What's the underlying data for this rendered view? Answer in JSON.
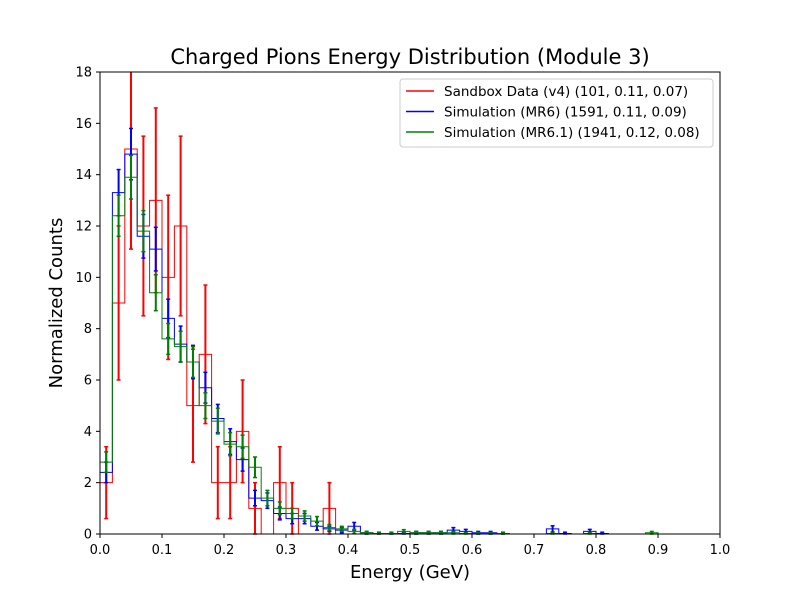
{
  "chart_data": {
    "type": "histogram",
    "title": "Charged Pions Energy Distribution (Module 3)",
    "xlabel": "Energy (GeV)",
    "ylabel": "Normalized Counts",
    "xlim": [
      0.0,
      1.0
    ],
    "ylim": [
      0,
      18
    ],
    "xticks": [
      "0.0",
      "0.1",
      "0.2",
      "0.3",
      "0.4",
      "0.5",
      "0.6",
      "0.7",
      "0.8",
      "0.9",
      "1.0"
    ],
    "yticks": [
      "0",
      "2",
      "4",
      "6",
      "8",
      "10",
      "12",
      "14",
      "16",
      "18"
    ],
    "grid": false,
    "legend_position": "top-right",
    "bin_edges": [
      0.0,
      0.02,
      0.04,
      0.06,
      0.08,
      0.1,
      0.12,
      0.14,
      0.16,
      0.18,
      0.2,
      0.22,
      0.24,
      0.26,
      0.28,
      0.3,
      0.32,
      0.34,
      0.36,
      0.38,
      0.4,
      0.42,
      0.44,
      0.46,
      0.48,
      0.5,
      0.52,
      0.54,
      0.56,
      0.58,
      0.6,
      0.62,
      0.64,
      0.66,
      0.68,
      0.7,
      0.72,
      0.74,
      0.76,
      0.78,
      0.8,
      0.82,
      0.84,
      0.86,
      0.88,
      0.9,
      0.92,
      0.94,
      0.96,
      0.98,
      1.0
    ],
    "series": [
      {
        "name": "Sandbox Data (v4) (101, 0.11, 0.07)",
        "color": "#ff0000",
        "values": [
          2.0,
          9.0,
          15.0,
          12.0,
          13.0,
          10.0,
          12.0,
          5.0,
          7.0,
          2.0,
          2.0,
          4.0,
          1.0,
          0.0,
          2.0,
          1.0,
          0.0,
          0.0,
          1.0,
          0,
          0,
          0,
          0,
          0,
          0,
          0,
          0,
          0,
          0,
          0,
          0,
          0,
          0,
          0,
          0,
          0,
          0,
          0,
          0,
          0,
          0,
          0,
          0,
          0,
          0,
          0,
          0,
          0,
          0,
          0
        ],
        "errors": [
          1.4,
          3.0,
          3.9,
          3.5,
          3.6,
          3.2,
          3.5,
          2.2,
          2.7,
          1.4,
          1.4,
          2.0,
          1.0,
          0,
          1.4,
          1.0,
          0,
          0,
          1.0,
          0,
          0,
          0,
          0,
          0,
          0,
          0,
          0,
          0,
          0,
          0,
          0,
          0,
          0,
          0,
          0,
          0,
          0,
          0,
          0,
          0,
          0,
          0,
          0,
          0,
          0,
          0,
          0,
          0,
          0,
          0
        ]
      },
      {
        "name": "Simulation (MR6) (1591, 0.11, 0.09)",
        "color": "#0000ff",
        "values": [
          2.4,
          13.3,
          14.8,
          11.6,
          11.1,
          8.4,
          7.4,
          6.7,
          5.7,
          4.5,
          3.6,
          2.9,
          1.4,
          1.3,
          0.8,
          0.6,
          0.6,
          0.3,
          0.2,
          0.15,
          0.3,
          0.05,
          0.02,
          0.02,
          0.02,
          0.05,
          0.05,
          0.05,
          0.15,
          0.1,
          0.05,
          0.05,
          0.02,
          0.0,
          0.0,
          0.0,
          0.2,
          0.02,
          0.0,
          0.1,
          0.02,
          0.0,
          0.0,
          0.0,
          0.0,
          0.0,
          0.0,
          0.0,
          0.0,
          0.0
        ],
        "errors": [
          0.4,
          0.9,
          1.0,
          0.85,
          0.85,
          0.75,
          0.7,
          0.65,
          0.6,
          0.55,
          0.5,
          0.45,
          0.3,
          0.3,
          0.25,
          0.2,
          0.2,
          0.15,
          0.1,
          0.1,
          0.15,
          0.05,
          0.05,
          0.05,
          0.05,
          0.05,
          0.05,
          0.05,
          0.1,
          0.08,
          0.05,
          0.05,
          0.05,
          0,
          0,
          0,
          0.12,
          0.05,
          0,
          0.08,
          0.05,
          0,
          0,
          0,
          0,
          0,
          0,
          0,
          0,
          0
        ]
      },
      {
        "name": "Simulation (MR6.1) (1941, 0.12, 0.08)",
        "color": "#008000",
        "values": [
          2.8,
          12.4,
          13.9,
          11.8,
          9.4,
          7.6,
          7.3,
          6.7,
          5.0,
          4.4,
          3.5,
          3.4,
          2.6,
          1.4,
          1.0,
          0.8,
          0.7,
          0.5,
          0.25,
          0.2,
          0.1,
          0.05,
          0.02,
          0.02,
          0.1,
          0.05,
          0.05,
          0.05,
          0.05,
          0.02,
          0.02,
          0.02,
          0.02,
          0.0,
          0.0,
          0.0,
          0.02,
          0.0,
          0.0,
          0.02,
          0.0,
          0.0,
          0.0,
          0.0,
          0.05,
          0.0,
          0.0,
          0.0,
          0.0,
          0.0
        ],
        "errors": [
          0.4,
          0.8,
          0.85,
          0.8,
          0.7,
          0.6,
          0.6,
          0.6,
          0.5,
          0.5,
          0.45,
          0.45,
          0.4,
          0.3,
          0.25,
          0.2,
          0.2,
          0.18,
          0.12,
          0.1,
          0.08,
          0.05,
          0.04,
          0.04,
          0.07,
          0.05,
          0.05,
          0.05,
          0.05,
          0.04,
          0.04,
          0.04,
          0.04,
          0,
          0,
          0,
          0.04,
          0,
          0,
          0.04,
          0,
          0,
          0,
          0,
          0.05,
          0,
          0,
          0,
          0,
          0
        ]
      }
    ]
  }
}
